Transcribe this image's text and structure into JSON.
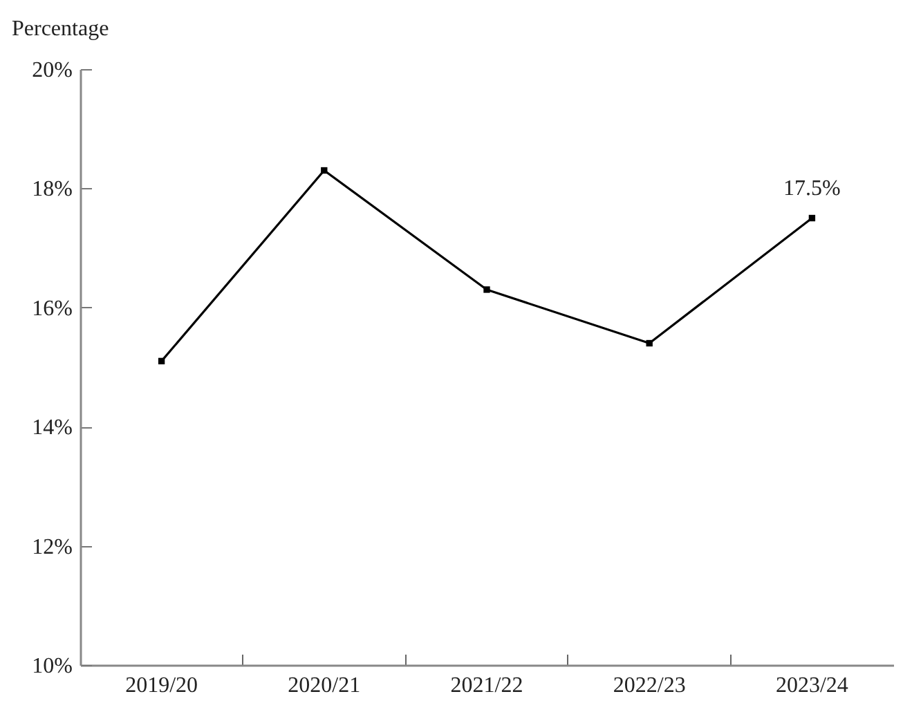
{
  "chart_data": {
    "type": "line",
    "ylabel": "Percentage",
    "categories": [
      "2019/20",
      "2020/21",
      "2021/22",
      "2022/23",
      "2023/24"
    ],
    "series": [
      {
        "color": "#000000",
        "values": [
          15.1,
          18.3,
          16.3,
          15.4,
          17.5
        ]
      }
    ],
    "ylim": [
      10,
      20
    ],
    "yticks": [
      {
        "value": 10,
        "label": "10%"
      },
      {
        "value": 12,
        "label": "12%"
      },
      {
        "value": 14,
        "label": "14%"
      },
      {
        "value": 16,
        "label": "16%"
      },
      {
        "value": 18,
        "label": "18%"
      },
      {
        "value": 20,
        "label": "20%"
      }
    ],
    "marker": "square",
    "line_style": "solid",
    "grid": false,
    "annotations": [
      {
        "text": "17.5%",
        "x": "2023/24",
        "y": 17.5
      }
    ]
  }
}
